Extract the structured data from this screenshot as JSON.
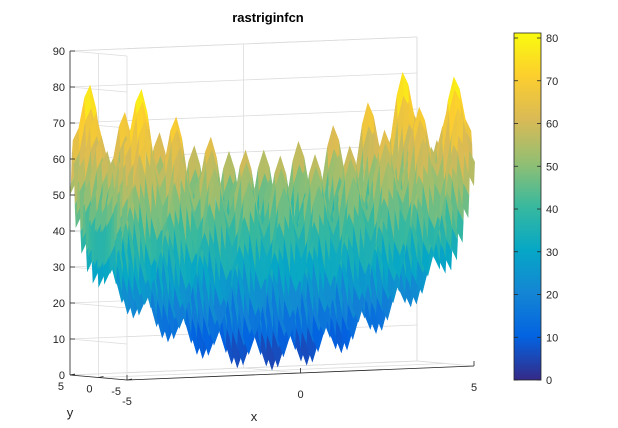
{
  "chart_data": {
    "type": "surface",
    "title": "rastriginfcn",
    "xlabel": "x",
    "ylabel": "y",
    "zlabel": "",
    "function": "rastrigin",
    "xlim": [
      -5,
      5
    ],
    "ylim": [
      -5,
      5
    ],
    "zlim": [
      0,
      90
    ],
    "x_ticks": [
      "-5",
      "0",
      "5"
    ],
    "y_ticks": [
      "5",
      "0",
      "-5"
    ],
    "z_ticks": [
      "0",
      "10",
      "20",
      "30",
      "40",
      "50",
      "60",
      "70",
      "80",
      "90"
    ],
    "colorbar": {
      "ticks": [
        "0",
        "10",
        "20",
        "30",
        "40",
        "50",
        "60",
        "70",
        "80"
      ],
      "range": [
        0,
        80
      ],
      "colormap": "parula",
      "stops": [
        "#352a87",
        "#0363e1",
        "#1485d4",
        "#06a7c6",
        "#38b99e",
        "#92bf73",
        "#d9ba56",
        "#fcce2e",
        "#f9fb0e"
      ]
    },
    "grid": true,
    "z_surface_max": 80.7,
    "z_surface_min": 0
  }
}
